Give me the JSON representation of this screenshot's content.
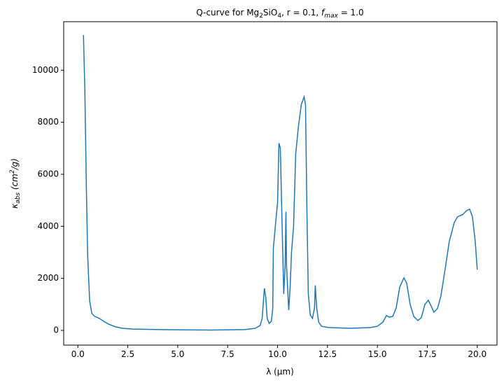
{
  "chart_data": {
    "type": "line",
    "title": [
      "Q-curve for Mg",
      "2",
      "SiO",
      "4",
      ", r = 0.1, ",
      "f",
      "max",
      " = 1.0"
    ],
    "xlabel": "λ (μm)",
    "ylabel": [
      "κ",
      "abs",
      " (cm",
      "2",
      "/g)"
    ],
    "xlim": [
      -0.71,
      20.99
    ],
    "ylim": [
      -565,
      11865
    ],
    "xticks": [
      {
        "value": 0,
        "label": "0.0"
      },
      2.5,
      {
        "value": 5,
        "label": "5.0"
      },
      7.5,
      {
        "value": 10,
        "label": "10.0"
      },
      12.5,
      {
        "value": 15,
        "label": "15.0"
      },
      17.5,
      {
        "value": 20,
        "label": "20.0"
      }
    ],
    "yticks": [
      0,
      2000,
      4000,
      6000,
      8000,
      10000
    ],
    "grid": false,
    "series": [
      {
        "color": "#1f77b4",
        "x": [
          0.28,
          0.35,
          0.42,
          0.49,
          0.59,
          0.7,
          0.84,
          1.08,
          1.29,
          1.54,
          1.89,
          2.24,
          2.76,
          4.16,
          6.6,
          8.36,
          8.88,
          9.13,
          9.23,
          9.34,
          9.41,
          9.48,
          9.58,
          9.69,
          9.76,
          9.79,
          9.9,
          10.0,
          10.07,
          10.14,
          10.21,
          10.31,
          10.38,
          10.42,
          10.45,
          10.56,
          10.63,
          10.7,
          10.8,
          10.91,
          11.05,
          11.19,
          11.33,
          11.4,
          11.47,
          11.54,
          11.64,
          11.75,
          11.85,
          11.89,
          11.96,
          12.06,
          12.2,
          12.55,
          13.6,
          14.65,
          15.0,
          15.28,
          15.45,
          15.59,
          15.77,
          15.94,
          16.12,
          16.33,
          16.47,
          16.64,
          16.82,
          17.03,
          17.2,
          17.38,
          17.55,
          17.69,
          17.83,
          18.01,
          18.18,
          18.39,
          18.6,
          18.85,
          19.02,
          19.27,
          19.48,
          19.62,
          19.76,
          19.9,
          20.0
        ],
        "values": [
          11350,
          9220,
          5710,
          2880,
          1130,
          650,
          540,
          460,
          350,
          240,
          135,
          80,
          50,
          30,
          15,
          30,
          80,
          190,
          460,
          1620,
          1270,
          460,
          270,
          350,
          860,
          3150,
          4100,
          4900,
          7200,
          7000,
          4640,
          1400,
          2480,
          4560,
          2480,
          780,
          1670,
          3020,
          3960,
          6790,
          7870,
          8680,
          8980,
          8680,
          4640,
          1400,
          590,
          460,
          860,
          1730,
          860,
          320,
          160,
          110,
          80,
          110,
          160,
          320,
          570,
          510,
          540,
          860,
          1670,
          2020,
          1810,
          1000,
          540,
          380,
          490,
          1000,
          1160,
          940,
          700,
          840,
          1320,
          2340,
          3420,
          4150,
          4370,
          4450,
          4610,
          4660,
          4370,
          3420,
          2340
        ]
      }
    ]
  }
}
